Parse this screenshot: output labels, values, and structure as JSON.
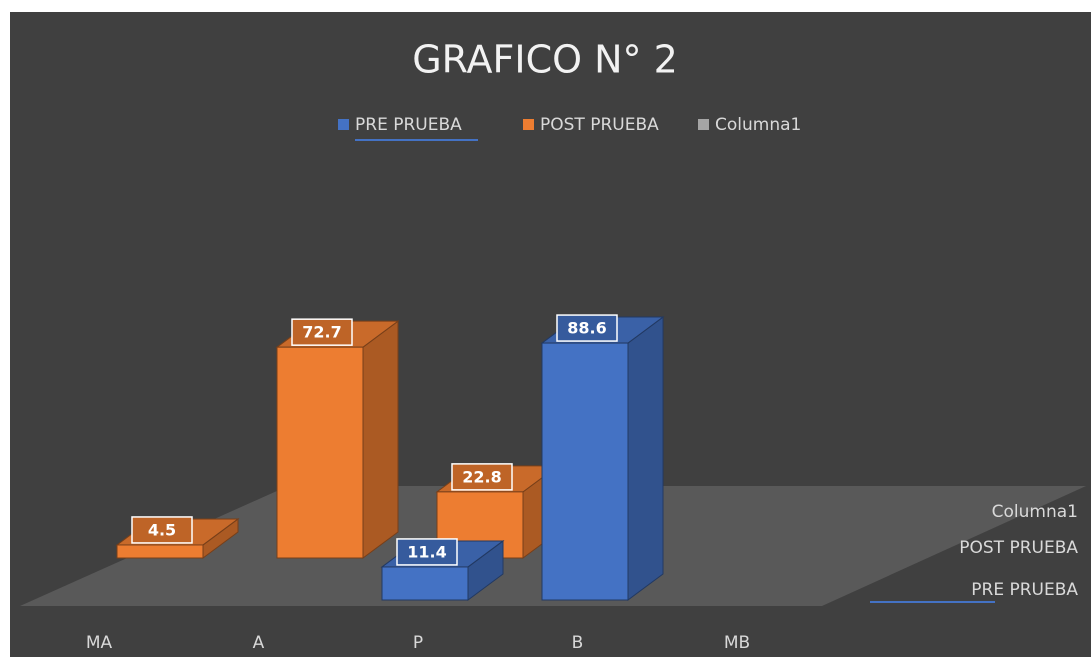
{
  "chart_data": {
    "type": "bar3d",
    "title": "GRAFICO N° 2",
    "categories": [
      "MA",
      "A",
      "P",
      "B",
      "MB"
    ],
    "series": [
      {
        "name": "PRE PRUEBA",
        "color": "#4472c4",
        "values": [
          null,
          null,
          11.4,
          88.6,
          null
        ]
      },
      {
        "name": "POST PRUEBA",
        "color": "#ed7d31",
        "values": [
          4.5,
          72.7,
          22.8,
          null,
          null
        ]
      },
      {
        "name": "Columna1",
        "color": "#a5a5a5",
        "values": [
          null,
          null,
          null,
          null,
          null
        ]
      }
    ],
    "legend": "top"
  }
}
